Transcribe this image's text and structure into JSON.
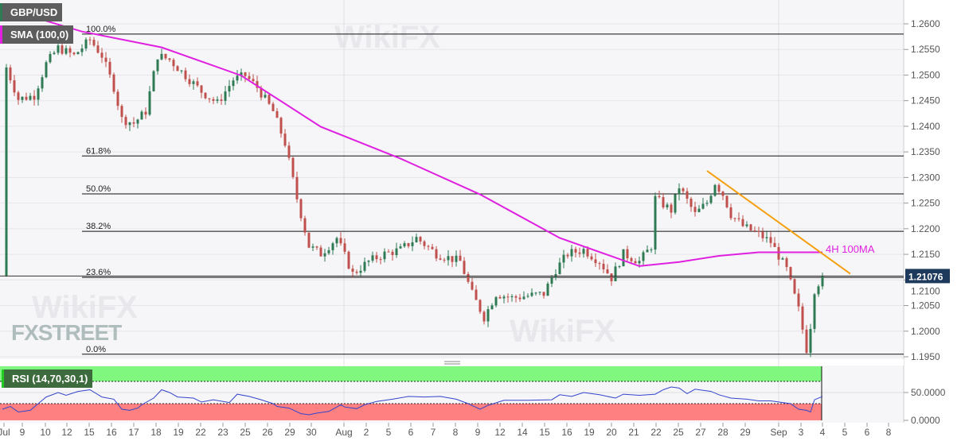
{
  "header": {
    "symbol": "GBP/USD",
    "indicator": "SMA (100,0)",
    "rsi_label": "RSI (14,70,30,1)"
  },
  "logo": "FXSTREET",
  "watermark": "WikiFX",
  "colors": {
    "up": "#2f7a55",
    "down": "#c0504d",
    "sma": "#e020e0",
    "trend": "#f5a011",
    "rsi": "#3344cc",
    "rsi_overbought": "#80f880",
    "rsi_oversold": "#ff8080",
    "price_tag": "#1d3a5c"
  },
  "chart_data": {
    "type": "candlestick",
    "price_axis": {
      "ticks": [
        "1.2600",
        "1.2550",
        "1.2500",
        "1.2450",
        "1.2400",
        "1.2350",
        "1.2300",
        "1.2250",
        "1.2200",
        "1.2150",
        "1.2100",
        "1.2050",
        "1.2000",
        "1.1950"
      ],
      "range": [
        1.195,
        1.26
      ]
    },
    "last_price": "1.21076",
    "x_ticks": [
      "Jul",
      "9",
      "10",
      "12",
      "15",
      "16",
      "17",
      "18",
      "19",
      "22",
      "23",
      "25",
      "26",
      "29",
      "30",
      "Aug",
      "2",
      "5",
      "6",
      "7",
      "8",
      "9",
      "12",
      "14",
      "15",
      "16",
      "19",
      "20",
      "21",
      "22",
      "25",
      "27",
      "28",
      "29",
      "Sep",
      "3",
      "4",
      "5",
      "6",
      "8"
    ],
    "fib_levels": [
      {
        "label": "100.0%",
        "price": 1.258
      },
      {
        "label": "61.8%",
        "price": 1.2342
      },
      {
        "label": "50.0%",
        "price": 1.2268
      },
      {
        "label": "38.2%",
        "price": 1.2195
      },
      {
        "label": "23.6%",
        "price": 1.2105
      },
      {
        "label": "0.0%",
        "price": 1.1955
      }
    ],
    "price_path": [
      [
        1,
        1.2515
      ],
      [
        4,
        1.2453
      ],
      [
        8,
        1.246
      ],
      [
        11,
        1.2522
      ],
      [
        14,
        1.2553
      ],
      [
        18,
        1.2538
      ],
      [
        22,
        1.2569
      ],
      [
        25,
        1.2538
      ],
      [
        28,
        1.2476
      ],
      [
        30,
        1.2414
      ],
      [
        33,
        1.2406
      ],
      [
        36,
        1.2429
      ],
      [
        39,
        1.2538
      ],
      [
        42,
        1.253
      ],
      [
        46,
        1.2499
      ],
      [
        50,
        1.2468
      ],
      [
        54,
        1.2445
      ],
      [
        58,
        1.2491
      ],
      [
        61,
        1.2499
      ],
      [
        64,
        1.2476
      ],
      [
        68,
        1.2429
      ],
      [
        71,
        1.2367
      ],
      [
        74,
        1.2259
      ],
      [
        77,
        1.2166
      ],
      [
        80,
        1.2151
      ],
      [
        84,
        1.2182
      ],
      [
        88,
        1.2112
      ],
      [
        92,
        1.2136
      ],
      [
        96,
        1.2151
      ],
      [
        100,
        1.2159
      ],
      [
        104,
        1.2182
      ],
      [
        109,
        1.2151
      ],
      [
        115,
        1.2136
      ],
      [
        118,
        1.2073
      ],
      [
        121,
        1.2027
      ],
      [
        124,
        1.2073
      ],
      [
        128,
        1.2065
      ],
      [
        136,
        1.2073
      ],
      [
        139,
        1.212
      ],
      [
        142,
        1.2151
      ],
      [
        146,
        1.2159
      ],
      [
        150,
        1.2136
      ],
      [
        153,
        1.2104
      ],
      [
        156,
        1.2151
      ],
      [
        160,
        1.2136
      ],
      [
        163,
        1.2166
      ],
      [
        164,
        1.2259
      ],
      [
        168,
        1.2236
      ],
      [
        170,
        1.2282
      ],
      [
        174,
        1.2228
      ],
      [
        177,
        1.2251
      ],
      [
        179,
        1.229
      ],
      [
        181,
        1.2267
      ],
      [
        183,
        1.2228
      ],
      [
        186,
        1.2205
      ],
      [
        190,
        1.2189
      ],
      [
        193,
        1.2174
      ],
      [
        197,
        1.212
      ],
      [
        200,
        1.2042
      ],
      [
        202,
        1.1965
      ],
      [
        203,
        1.2011
      ],
      [
        204,
        1.2081
      ],
      [
        206,
        1.21076
      ]
    ],
    "sma_100": {
      "label": "4H 100MA",
      "path": [
        [
          0,
          1.2639
        ],
        [
          10,
          1.2608
        ],
        [
          20,
          1.2585
        ],
        [
          40,
          1.2554
        ],
        [
          60,
          1.2499
        ],
        [
          80,
          1.2399
        ],
        [
          100,
          1.2337
        ],
        [
          120,
          1.2267
        ],
        [
          140,
          1.2182
        ],
        [
          160,
          1.2127
        ],
        [
          170,
          1.2135
        ],
        [
          180,
          1.2147
        ],
        [
          190,
          1.2154
        ],
        [
          200,
          1.2154
        ],
        [
          206,
          1.2154
        ]
      ]
    },
    "trendline": [
      [
        177,
        1.2313
      ],
      [
        213,
        1.2112
      ]
    ],
    "rsi": {
      "levels": [
        70,
        30
      ],
      "axis_ticks": [
        "50.0000",
        "0.0000"
      ],
      "path": [
        [
          0,
          20
        ],
        [
          2,
          25
        ],
        [
          4,
          15
        ],
        [
          7,
          18
        ],
        [
          9,
          30
        ],
        [
          11,
          42
        ],
        [
          14,
          50
        ],
        [
          16,
          45
        ],
        [
          19,
          52
        ],
        [
          22,
          55
        ],
        [
          25,
          42
        ],
        [
          28,
          38
        ],
        [
          30,
          20
        ],
        [
          32,
          18
        ],
        [
          34,
          22
        ],
        [
          35,
          28
        ],
        [
          38,
          40
        ],
        [
          40,
          55
        ],
        [
          42,
          50
        ],
        [
          44,
          42
        ],
        [
          48,
          40
        ],
        [
          50,
          33
        ],
        [
          53,
          37
        ],
        [
          57,
          32
        ],
        [
          59,
          47
        ],
        [
          62,
          43
        ],
        [
          65,
          37
        ],
        [
          68,
          30
        ],
        [
          69,
          25
        ],
        [
          72,
          22
        ],
        [
          75,
          12
        ],
        [
          77,
          10
        ],
        [
          79,
          13
        ],
        [
          82,
          16
        ],
        [
          85,
          28
        ],
        [
          86,
          24
        ],
        [
          89,
          21
        ],
        [
          91,
          28
        ],
        [
          94,
          34
        ],
        [
          98,
          38
        ],
        [
          102,
          43
        ],
        [
          106,
          42
        ],
        [
          110,
          43
        ],
        [
          114,
          38
        ],
        [
          117,
          30
        ],
        [
          120,
          20
        ],
        [
          122,
          27
        ],
        [
          126,
          36
        ],
        [
          132,
          36
        ],
        [
          138,
          37
        ],
        [
          140,
          46
        ],
        [
          143,
          43
        ],
        [
          146,
          50
        ],
        [
          150,
          46
        ],
        [
          154,
          40
        ],
        [
          156,
          47
        ],
        [
          160,
          45
        ],
        [
          164,
          47
        ],
        [
          166,
          55
        ],
        [
          168,
          60
        ],
        [
          170,
          58
        ],
        [
          172,
          48
        ],
        [
          174,
          56
        ],
        [
          176,
          54
        ],
        [
          178,
          52
        ],
        [
          180,
          46
        ],
        [
          183,
          40
        ],
        [
          187,
          38
        ],
        [
          190,
          35
        ],
        [
          193,
          35
        ],
        [
          198,
          30
        ],
        [
          200,
          20
        ],
        [
          202,
          18
        ],
        [
          203,
          15
        ],
        [
          204,
          37
        ],
        [
          206,
          43
        ]
      ]
    }
  }
}
